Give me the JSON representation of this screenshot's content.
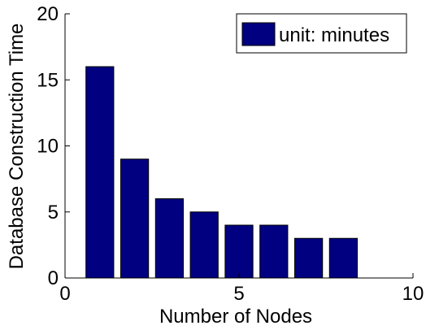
{
  "chart_data": {
    "type": "bar",
    "x": [
      1,
      2,
      3,
      4,
      5,
      6,
      7,
      8
    ],
    "values": [
      16,
      9,
      6,
      5,
      4,
      4,
      3,
      3
    ],
    "bar_color": "#000080",
    "xlabel": "Number of Nodes",
    "ylabel": "Database Construction Time",
    "xlim": [
      0,
      10
    ],
    "ylim": [
      0,
      20
    ],
    "xticks": [
      0,
      5,
      10
    ],
    "yticks": [
      0,
      5,
      10,
      15,
      20
    ],
    "xtick_labels": [
      "0",
      "5",
      "10"
    ],
    "ytick_labels": [
      "0",
      "5",
      "10",
      "15",
      "20"
    ],
    "grid": false,
    "legend": {
      "position": "top-right",
      "entries": [
        {
          "label": "unit: minutes",
          "color": "#000080"
        }
      ]
    }
  }
}
